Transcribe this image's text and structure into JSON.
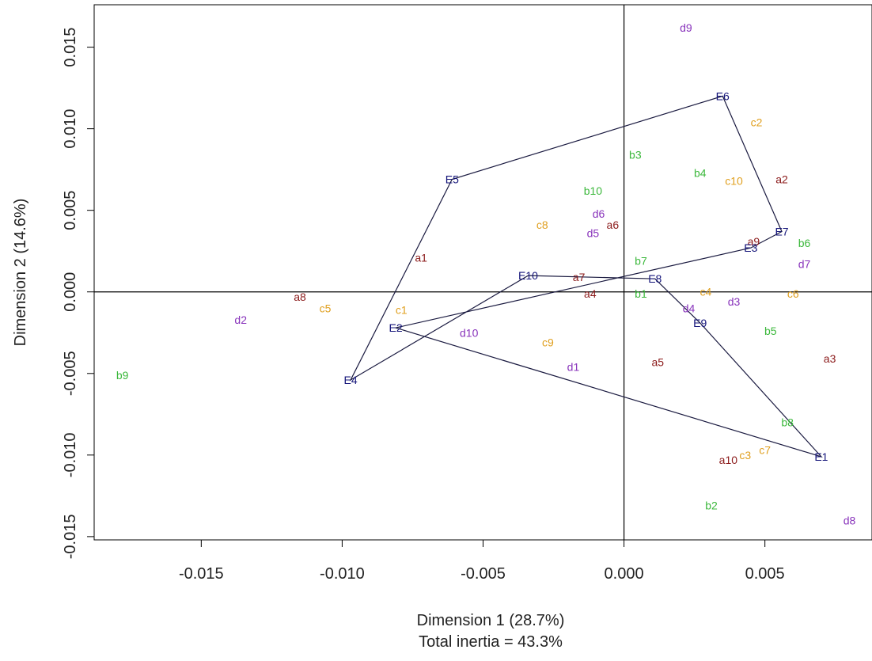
{
  "chart_data": {
    "type": "scatter",
    "xlabel": "Dimension 1 (28.7%)",
    "ylabel": "Dimension 2 (14.6%)",
    "subtitle": "Total inertia = 43.3%",
    "xlim": [
      -0.0188,
      0.0088
    ],
    "ylim": [
      -0.0152,
      0.0176
    ],
    "x_ticks": [
      {
        "value": -0.015,
        "label": "-0.015"
      },
      {
        "value": -0.01,
        "label": "-0.010"
      },
      {
        "value": -0.005,
        "label": "-0.005"
      },
      {
        "value": 0.0,
        "label": "0.000"
      },
      {
        "value": 0.005,
        "label": "0.005"
      }
    ],
    "y_ticks": [
      {
        "value": -0.015,
        "label": "-0.015"
      },
      {
        "value": -0.01,
        "label": "-0.010"
      },
      {
        "value": -0.005,
        "label": "-0.005"
      },
      {
        "value": 0.0,
        "label": "0.000"
      },
      {
        "value": 0.005,
        "label": "0.005"
      },
      {
        "value": 0.01,
        "label": "0.010"
      },
      {
        "value": 0.015,
        "label": "0.015"
      }
    ],
    "reference_lines": {
      "x": 0,
      "y": 0
    },
    "grid": false,
    "series": [
      {
        "color": "#8b1a1a",
        "points": [
          {
            "label": "a1",
            "x": -0.0072,
            "y": 0.0021
          },
          {
            "label": "a2",
            "x": 0.0056,
            "y": 0.0069
          },
          {
            "label": "a3",
            "x": 0.0073,
            "y": -0.0041
          },
          {
            "label": "a4",
            "x": -0.0012,
            "y": -0.0001
          },
          {
            "label": "a5",
            "x": 0.0012,
            "y": -0.0043
          },
          {
            "label": "a6",
            "x": -0.0004,
            "y": 0.0041
          },
          {
            "label": "a7",
            "x": -0.0016,
            "y": 0.0009
          },
          {
            "label": "a8",
            "x": -0.0115,
            "y": -0.0003
          },
          {
            "label": "a9",
            "x": 0.0046,
            "y": 0.0031
          },
          {
            "label": "a10",
            "x": 0.0037,
            "y": -0.0103
          }
        ]
      },
      {
        "color": "#3cb83c",
        "points": [
          {
            "label": "b1",
            "x": 0.0006,
            "y": -0.0001
          },
          {
            "label": "b2",
            "x": 0.0031,
            "y": -0.0131
          },
          {
            "label": "b3",
            "x": 0.0004,
            "y": 0.0084
          },
          {
            "label": "b4",
            "x": 0.0027,
            "y": 0.0073
          },
          {
            "label": "b5",
            "x": 0.0052,
            "y": -0.0024
          },
          {
            "label": "b6",
            "x": 0.0064,
            "y": 0.003
          },
          {
            "label": "b7",
            "x": 0.0006,
            "y": 0.0019
          },
          {
            "label": "b8",
            "x": 0.0058,
            "y": -0.008
          },
          {
            "label": "b9",
            "x": -0.0178,
            "y": -0.0051
          },
          {
            "label": "b10",
            "x": -0.0011,
            "y": 0.0062
          }
        ]
      },
      {
        "color": "#e0a020",
        "points": [
          {
            "label": "c1",
            "x": -0.0079,
            "y": -0.0011
          },
          {
            "label": "c2",
            "x": 0.0047,
            "y": 0.0104
          },
          {
            "label": "c3",
            "x": 0.0043,
            "y": -0.01
          },
          {
            "label": "c4",
            "x": 0.0029,
            "y": 0.0
          },
          {
            "label": "c5",
            "x": -0.0106,
            "y": -0.001
          },
          {
            "label": "c6",
            "x": 0.006,
            "y": -0.0001
          },
          {
            "label": "c7",
            "x": 0.005,
            "y": -0.0097
          },
          {
            "label": "c8",
            "x": -0.0029,
            "y": 0.0041
          },
          {
            "label": "c9",
            "x": -0.0027,
            "y": -0.0031
          },
          {
            "label": "c10",
            "x": 0.0039,
            "y": 0.0068
          }
        ]
      },
      {
        "color": "#8833bb",
        "points": [
          {
            "label": "d1",
            "x": -0.0018,
            "y": -0.0046
          },
          {
            "label": "d2",
            "x": -0.0136,
            "y": -0.0017
          },
          {
            "label": "d3",
            "x": 0.0039,
            "y": -0.0006
          },
          {
            "label": "d4",
            "x": 0.0023,
            "y": -0.001
          },
          {
            "label": "d5",
            "x": -0.0011,
            "y": 0.0036
          },
          {
            "label": "d6",
            "x": -0.0009,
            "y": 0.0048
          },
          {
            "label": "d7",
            "x": 0.0064,
            "y": 0.0017
          },
          {
            "label": "d8",
            "x": 0.008,
            "y": -0.014
          },
          {
            "label": "d9",
            "x": 0.0022,
            "y": 0.0162
          },
          {
            "label": "d10",
            "x": -0.0055,
            "y": -0.0025
          }
        ]
      }
    ],
    "centroids": {
      "color": "#14147a",
      "points": [
        {
          "label": "E1",
          "x": 0.007,
          "y": -0.0101
        },
        {
          "label": "E2",
          "x": -0.0081,
          "y": -0.0022
        },
        {
          "label": "E3",
          "x": 0.0045,
          "y": 0.0027
        },
        {
          "label": "E4",
          "x": -0.0097,
          "y": -0.0054
        },
        {
          "label": "E5",
          "x": -0.0061,
          "y": 0.0069
        },
        {
          "label": "E6",
          "x": 0.0035,
          "y": 0.012
        },
        {
          "label": "E7",
          "x": 0.0056,
          "y": 0.0037
        },
        {
          "label": "E8",
          "x": 0.0011,
          "y": 0.0008
        },
        {
          "label": "E9",
          "x": 0.0027,
          "y": -0.0019
        },
        {
          "label": "E10",
          "x": -0.0034,
          "y": 0.001
        }
      ],
      "hull": [
        "E6",
        "E7",
        "E3",
        "E2",
        "E1",
        "E9",
        "E8",
        "E10",
        "E4",
        "E5"
      ]
    }
  }
}
